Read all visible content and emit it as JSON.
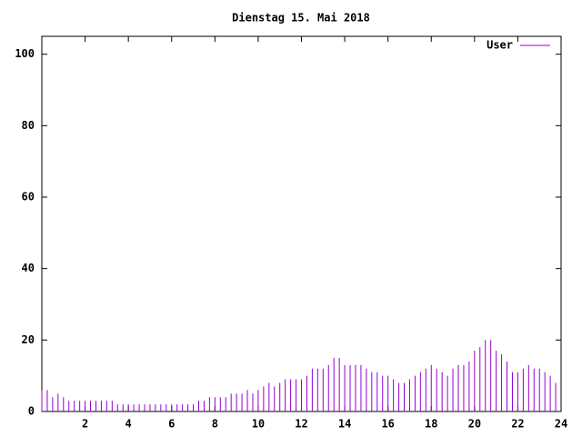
{
  "chart_data": {
    "type": "impulses",
    "title": "Dienstag 15. Mai 2018",
    "xlim": [
      0,
      24
    ],
    "ylim": [
      0,
      105
    ],
    "xticks": [
      2,
      4,
      6,
      8,
      10,
      12,
      14,
      16,
      18,
      20,
      22,
      24
    ],
    "yticks": [
      0,
      20,
      40,
      60,
      80,
      100
    ],
    "legend": "top-right",
    "series": [
      {
        "name": "User",
        "color": "#9400d3",
        "x": [
          0,
          0.25,
          0.5,
          0.75,
          1,
          1.25,
          1.5,
          1.75,
          2,
          2.25,
          2.5,
          2.75,
          3,
          3.25,
          3.5,
          3.75,
          4,
          4.25,
          4.5,
          4.75,
          5,
          5.25,
          5.5,
          5.75,
          6,
          6.25,
          6.5,
          6.75,
          7,
          7.25,
          7.5,
          7.75,
          8,
          8.25,
          8.5,
          8.75,
          9,
          9.25,
          9.5,
          9.75,
          10,
          10.25,
          10.5,
          10.75,
          11,
          11.25,
          11.5,
          11.75,
          12,
          12.25,
          12.5,
          12.75,
          13,
          13.25,
          13.5,
          13.75,
          14,
          14.25,
          14.5,
          14.75,
          15,
          15.25,
          15.5,
          15.75,
          16,
          16.25,
          16.5,
          16.75,
          17,
          17.25,
          17.5,
          17.75,
          18,
          18.25,
          18.5,
          18.75,
          19,
          19.25,
          19.5,
          19.75,
          20,
          20.25,
          20.5,
          20.75,
          21,
          21.25,
          21.5,
          21.75,
          22,
          22.25,
          22.5,
          22.75,
          23,
          23.25,
          23.5,
          23.75
        ],
        "values": [
          6,
          6,
          4,
          5,
          4,
          3,
          3,
          3,
          3,
          3,
          3,
          3,
          3,
          3,
          2,
          2,
          2,
          2,
          2,
          2,
          2,
          2,
          2,
          2,
          2,
          2,
          2,
          2,
          2,
          3,
          3,
          4,
          4,
          4,
          4,
          5,
          5,
          5,
          6,
          5,
          6,
          7,
          8,
          7,
          8,
          9,
          9,
          9,
          9,
          10,
          12,
          12,
          12,
          13,
          15,
          15,
          13,
          13,
          13,
          13,
          12,
          11,
          11,
          10,
          10,
          9,
          8,
          8,
          9,
          10,
          11,
          12,
          13,
          12,
          11,
          10,
          12,
          13,
          13,
          14,
          17,
          18,
          20,
          20,
          17,
          16,
          14,
          11,
          11,
          12,
          13,
          12,
          12,
          11,
          10,
          8
        ]
      }
    ]
  }
}
